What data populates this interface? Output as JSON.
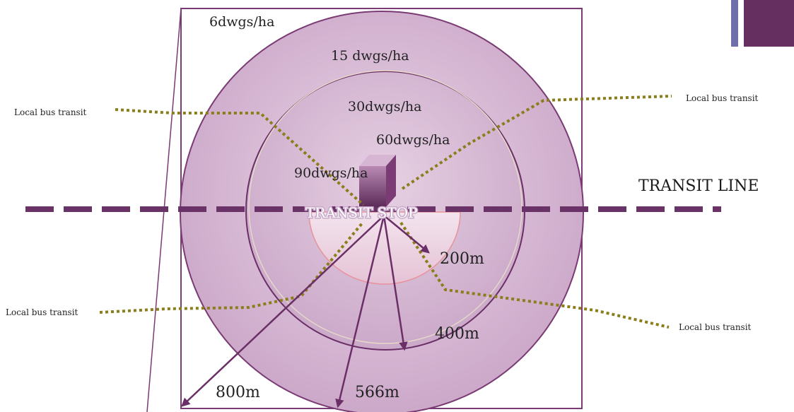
{
  "labels": {
    "density_outer": "6dwgs/ha",
    "density_ring2": "15 dwgs/ha",
    "density_ring3": "30dwgs/ha",
    "density_ring4": "60dwgs/ha",
    "density_core": "90dwgs/ha",
    "transit_line": "TRANSIT LINE",
    "transit_stop": "TRANSIT STOP",
    "dist_200": "200m",
    "dist_400": "400m",
    "dist_800": "800m",
    "dist_566": "566m",
    "bus_top_left": "Local bus transit",
    "bus_top_right": "Local bus transit",
    "bus_bottom_left": "Local bus transit",
    "bus_bottom_right": "Local bus transit"
  },
  "colors": {
    "accent": "#65305f",
    "accent_light": "#6e6ea8",
    "outer_ring": "#d9b8d6",
    "inner_ring": "#caa6c8",
    "bus_route": "#8a7d1a",
    "radius_arrow": "#6a2f66",
    "transit_line": "#6a3368"
  }
}
